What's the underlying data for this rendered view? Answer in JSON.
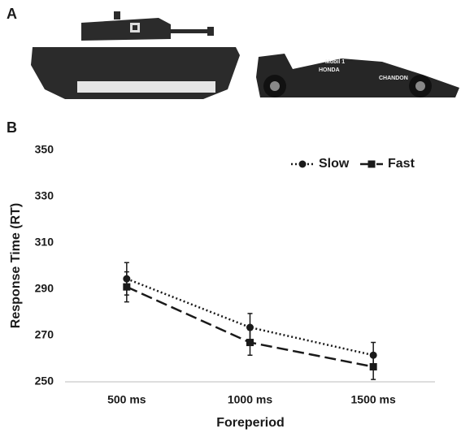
{
  "panel_labels": [
    "A",
    "B"
  ],
  "car_decals": [
    "Mobil 1",
    "HONDA",
    "CHANDON"
  ],
  "chart_data": {
    "type": "line",
    "x_label": "Foreperiod",
    "y_label": "Response Time (RT)",
    "categories": [
      "500 ms",
      "1000 ms",
      "1500 ms"
    ],
    "series": [
      {
        "name": "Slow",
        "color": "#1a1a1a",
        "dash": "dotted",
        "marker": "circle",
        "values": [
          294.5,
          273.5,
          261.5
        ],
        "errors": [
          7,
          6,
          5.5
        ]
      },
      {
        "name": "Fast",
        "color": "#1a1a1a",
        "dash": "dashed",
        "marker": "square",
        "values": [
          291,
          267,
          256.5
        ],
        "errors": [
          6.5,
          5.5,
          5.5
        ]
      }
    ],
    "ylim": [
      250,
      350
    ],
    "yticks": [
      250,
      270,
      290,
      310,
      330,
      350
    ],
    "grid": false,
    "legend": "top-right"
  }
}
